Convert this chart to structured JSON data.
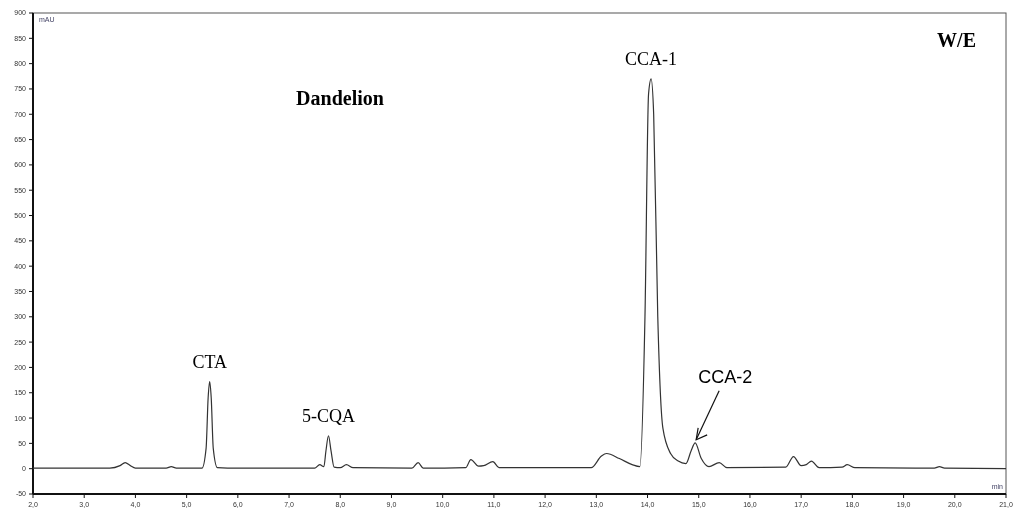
{
  "chart_data": {
    "type": "line",
    "title": "Dandelion",
    "subtitle": "W/E",
    "xlabel": "min",
    "ylabel": "mAU",
    "xlim": [
      2,
      21
    ],
    "ylim": [
      -50,
      900
    ],
    "xticks": [
      {
        "value": 2,
        "label": "2,0"
      },
      {
        "value": 3,
        "label": "3,0"
      },
      {
        "value": 4,
        "label": "4,0"
      },
      {
        "value": 5,
        "label": "5,0"
      },
      {
        "value": 6,
        "label": "6,0"
      },
      {
        "value": 7,
        "label": "7,0"
      },
      {
        "value": 8,
        "label": "8,0"
      },
      {
        "value": 9,
        "label": "9,0"
      },
      {
        "value": 10,
        "label": "10,0"
      },
      {
        "value": 11,
        "label": "11,0"
      },
      {
        "value": 12,
        "label": "12,0"
      },
      {
        "value": 13,
        "label": "13,0"
      },
      {
        "value": 14,
        "label": "14,0"
      },
      {
        "value": 15,
        "label": "15,0"
      },
      {
        "value": 16,
        "label": "16,0"
      },
      {
        "value": 17,
        "label": "17,0"
      },
      {
        "value": 18,
        "label": "18,0"
      },
      {
        "value": 19,
        "label": "19,0"
      },
      {
        "value": 20,
        "label": "20,0"
      },
      {
        "value": 21,
        "label": "21,0"
      }
    ],
    "yticks": [
      -50,
      0,
      50,
      100,
      150,
      200,
      250,
      300,
      350,
      400,
      450,
      500,
      550,
      600,
      650,
      700,
      750,
      800,
      850,
      900
    ],
    "series": [
      {
        "color": "#333333",
        "x": [
          2.0,
          3.5,
          3.7,
          3.8,
          3.9,
          4.0,
          4.6,
          4.7,
          4.8,
          5.3,
          5.38,
          5.42,
          5.45,
          5.48,
          5.52,
          5.6,
          6.0,
          7.5,
          7.6,
          7.68,
          7.72,
          7.77,
          7.82,
          7.88,
          8.0,
          8.12,
          8.25,
          9.4,
          9.52,
          9.62,
          10.45,
          10.55,
          10.7,
          10.8,
          10.98,
          11.1,
          12.9,
          13.1,
          13.2,
          13.45,
          13.7,
          13.85,
          13.95,
          14.02,
          14.07,
          14.12,
          14.2,
          14.3,
          14.45,
          14.6,
          14.75,
          14.85,
          14.93,
          15.05,
          15.2,
          15.4,
          15.55,
          16.7,
          16.85,
          17.0,
          17.1,
          17.2,
          17.35,
          17.8,
          17.9,
          18.05,
          19.6,
          19.7,
          19.8,
          21.0
        ],
        "values": [
          1,
          1,
          6,
          12,
          6,
          1,
          1,
          4,
          1,
          1,
          40,
          140,
          172,
          140,
          40,
          2,
          1,
          1,
          8,
          4,
          35,
          65,
          35,
          3,
          2,
          8,
          2,
          1,
          12,
          1,
          2,
          18,
          5,
          6,
          14,
          2,
          2,
          25,
          30,
          20,
          8,
          4,
          300,
          740,
          770,
          700,
          300,
          80,
          30,
          15,
          10,
          35,
          51,
          20,
          4,
          12,
          2,
          3,
          24,
          6,
          8,
          15,
          2,
          3,
          8,
          2,
          1,
          4,
          1,
          0
        ]
      }
    ],
    "annotations": [
      {
        "text": "CTA",
        "x": 5.45,
        "y": 172
      },
      {
        "text": "5-CQA",
        "x": 7.77,
        "y": 65
      },
      {
        "text": "CCA-1",
        "x": 14.07,
        "y": 770
      },
      {
        "text": "CCA-2",
        "x": 14.93,
        "y": 51
      }
    ]
  }
}
